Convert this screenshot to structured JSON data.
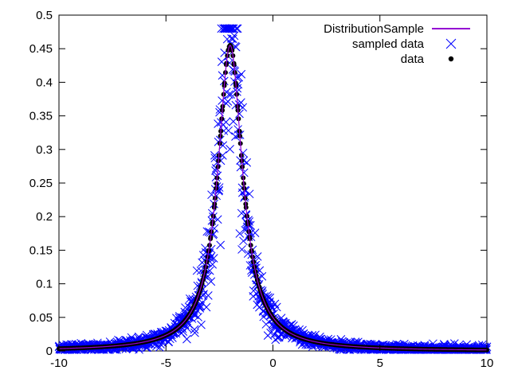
{
  "chart_data": {
    "type": "scatter",
    "title": "",
    "xlabel": "",
    "ylabel": "",
    "xlim": [
      -10,
      10
    ],
    "ylim": [
      0,
      0.5
    ],
    "grid": false,
    "legend_position": "top-right",
    "x_ticks": [
      "-10",
      "-5",
      "0",
      "5",
      "10"
    ],
    "x_tick_values": [
      -10,
      -5,
      0,
      5,
      10
    ],
    "y_ticks": [
      "0",
      "0.05",
      "0.1",
      "0.15",
      "0.2",
      "0.25",
      "0.3",
      "0.35",
      "0.4",
      "0.45",
      "0.5"
    ],
    "y_tick_values": [
      0,
      0.05,
      0.1,
      0.15,
      0.2,
      0.25,
      0.3,
      0.35,
      0.4,
      0.45,
      0.5
    ],
    "distribution": {
      "family": "Cauchy",
      "location": -2,
      "scale": 0.7,
      "peak": 0.455
    },
    "series": [
      {
        "name": "DistributionSample",
        "style": "line",
        "color": "#9400d3"
      },
      {
        "name": "sampled data",
        "style": "cross",
        "color": "#0000ff"
      },
      {
        "name": "data",
        "style": "dot",
        "color": "#000000"
      }
    ]
  }
}
